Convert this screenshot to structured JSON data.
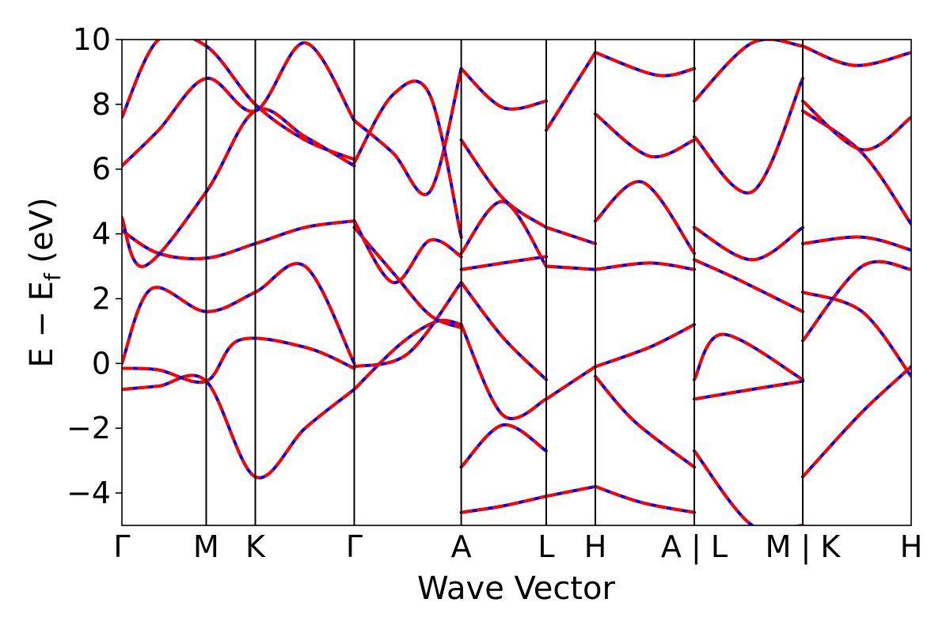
{
  "chart_data": {
    "type": "line",
    "title": "",
    "xlabel": "Wave Vector",
    "ylabel": "E − E",
    "ylabel_sub": "f",
    "ylabel_unit": " (eV)",
    "ylim": [
      -5,
      10
    ],
    "yticks": [
      -4,
      -2,
      0,
      2,
      4,
      6,
      8,
      10
    ],
    "yticklabels": [
      "−4",
      "−2",
      "0",
      "2",
      "4",
      "6",
      "8",
      "10"
    ],
    "xlim": [
      0,
      10.77
    ],
    "kpoints": [
      {
        "x": 0.0,
        "label": "Γ"
      },
      {
        "x": 1.15,
        "label": "M"
      },
      {
        "x": 1.82,
        "label": "K"
      },
      {
        "x": 3.17,
        "label": "Γ"
      },
      {
        "x": 4.63,
        "label": "A"
      },
      {
        "x": 5.79,
        "label": "L"
      },
      {
        "x": 6.46,
        "label": "H"
      },
      {
        "x": 7.81,
        "label": "A | L"
      },
      {
        "x": 9.29,
        "label": "M | K"
      },
      {
        "x": 10.77,
        "label": "H"
      }
    ],
    "colors": {
      "dft": "#0000ff",
      "fit": "#ff0000"
    },
    "series": [
      {
        "x": [
          0,
          0.5,
          1.15,
          1.82,
          2.5,
          3.17
        ],
        "y": [
          -0.8,
          -0.7,
          -0.55,
          -3.5,
          -2.0,
          -0.8
        ]
      },
      {
        "x": [
          0,
          0.5,
          1.15,
          1.6,
          2.5,
          3.17
        ],
        "y": [
          -0.15,
          -0.2,
          -0.55,
          0.72,
          0.5,
          -0.15
        ]
      },
      {
        "x": [
          0,
          0.4,
          1.15,
          1.82,
          2.5,
          3.17
        ],
        "y": [
          0.0,
          2.3,
          1.6,
          2.2,
          3.0,
          0.0
        ]
      },
      {
        "x": [
          0,
          0.5,
          1.15,
          1.82,
          2.5,
          3.17
        ],
        "y": [
          4.1,
          3.4,
          3.25,
          3.7,
          4.2,
          4.4
        ]
      },
      {
        "x": [
          0,
          0.3,
          1.15,
          1.82,
          2.5,
          3.17
        ],
        "y": [
          4.5,
          3.0,
          5.3,
          7.8,
          7.0,
          6.1
        ]
      },
      {
        "x": [
          0,
          0.5,
          1.15,
          1.82,
          2.5,
          3.17
        ],
        "y": [
          6.1,
          7.2,
          8.8,
          7.8,
          9.9,
          7.5
        ]
      },
      {
        "x": [
          0,
          0.5,
          1.15,
          1.82,
          2.5,
          3.17
        ],
        "y": [
          7.6,
          10.0,
          9.8,
          8.0,
          6.9,
          6.3
        ]
      },
      {
        "x": [
          3.17,
          3.8,
          4.3,
          4.63
        ],
        "y": [
          -0.8,
          0.6,
          1.3,
          1.2
        ]
      },
      {
        "x": [
          3.17,
          3.9,
          4.63
        ],
        "y": [
          -0.1,
          0.3,
          2.5
        ]
      },
      {
        "x": [
          3.17,
          3.7,
          4.2,
          4.63
        ],
        "y": [
          4.2,
          2.8,
          1.5,
          1.1
        ]
      },
      {
        "x": [
          3.17,
          3.7,
          4.2,
          4.63
        ],
        "y": [
          4.4,
          2.5,
          3.8,
          3.3
        ]
      },
      {
        "x": [
          3.17,
          3.7,
          4.2,
          4.63
        ],
        "y": [
          6.2,
          8.3,
          8.3,
          3.9
        ]
      },
      {
        "x": [
          3.17,
          3.7,
          4.2,
          4.63
        ],
        "y": [
          7.5,
          6.5,
          5.3,
          9.1
        ]
      },
      {
        "x": [
          4.63,
          5.2,
          5.79
        ],
        "y": [
          -4.6,
          -4.4,
          -4.1
        ]
      },
      {
        "x": [
          4.63,
          5.2,
          5.79
        ],
        "y": [
          -3.2,
          -1.9,
          -2.7
        ]
      },
      {
        "x": [
          4.63,
          5.2,
          5.79
        ],
        "y": [
          1.2,
          -1.6,
          -1.1
        ]
      },
      {
        "x": [
          4.63,
          5.2,
          5.79
        ],
        "y": [
          2.5,
          0.8,
          -0.5
        ]
      },
      {
        "x": [
          4.63,
          5.2,
          5.79
        ],
        "y": [
          2.9,
          3.1,
          3.3
        ]
      },
      {
        "x": [
          4.63,
          5.2,
          5.79
        ],
        "y": [
          3.4,
          5.0,
          3.0
        ]
      },
      {
        "x": [
          4.63,
          5.2,
          5.79
        ],
        "y": [
          6.9,
          5.1,
          4.2
        ]
      },
      {
        "x": [
          4.63,
          5.2,
          5.79
        ],
        "y": [
          9.1,
          7.9,
          8.1
        ]
      },
      {
        "x": [
          5.79,
          6.46
        ],
        "y": [
          -4.1,
          -3.8
        ]
      },
      {
        "x": [
          5.79,
          6.46
        ],
        "y": [
          -1.1,
          -0.1
        ]
      },
      {
        "x": [
          5.79,
          6.46
        ],
        "y": [
          3.0,
          2.9
        ]
      },
      {
        "x": [
          5.79,
          6.46
        ],
        "y": [
          4.2,
          3.7
        ]
      },
      {
        "x": [
          5.79,
          6.46
        ],
        "y": [
          7.2,
          9.6
        ]
      },
      {
        "x": [
          6.46,
          7.1,
          7.81
        ],
        "y": [
          -3.8,
          -4.3,
          -4.6
        ]
      },
      {
        "x": [
          6.46,
          7.0,
          7.81
        ],
        "y": [
          -0.4,
          -1.8,
          -3.2
        ]
      },
      {
        "x": [
          6.46,
          7.2,
          7.81
        ],
        "y": [
          -0.1,
          0.5,
          1.2
        ]
      },
      {
        "x": [
          6.46,
          7.2,
          7.81
        ],
        "y": [
          2.9,
          3.1,
          2.9
        ]
      },
      {
        "x": [
          6.46,
          7.1,
          7.81
        ],
        "y": [
          4.4,
          5.6,
          3.4
        ]
      },
      {
        "x": [
          6.46,
          7.2,
          7.81
        ],
        "y": [
          7.7,
          6.4,
          6.9
        ]
      },
      {
        "x": [
          6.46,
          7.3,
          7.81
        ],
        "y": [
          9.6,
          8.9,
          9.1
        ]
      },
      {
        "x": [
          7.81,
          8.6,
          9.29
        ],
        "y": [
          -2.7,
          -5.0,
          -5.0
        ]
      },
      {
        "x": [
          7.81,
          8.6,
          9.29
        ],
        "y": [
          -1.1,
          -0.8,
          -0.55
        ]
      },
      {
        "x": [
          7.81,
          8.2,
          9.29
        ],
        "y": [
          -0.5,
          0.9,
          -0.5
        ]
      },
      {
        "x": [
          7.81,
          8.4,
          9.29
        ],
        "y": [
          3.2,
          2.6,
          1.6
        ]
      },
      {
        "x": [
          7.81,
          8.6,
          9.29
        ],
        "y": [
          4.2,
          3.2,
          4.2
        ]
      },
      {
        "x": [
          7.81,
          8.6,
          9.29
        ],
        "y": [
          7.0,
          5.3,
          8.8
        ]
      },
      {
        "x": [
          7.81,
          8.6,
          9.29
        ],
        "y": [
          8.1,
          9.9,
          9.8
        ]
      },
      {
        "x": [
          9.29,
          10.1,
          10.77
        ],
        "y": [
          -3.5,
          -1.5,
          -0.1
        ]
      },
      {
        "x": [
          9.29,
          10.1,
          10.77
        ],
        "y": [
          0.7,
          3.0,
          2.9
        ]
      },
      {
        "x": [
          9.29,
          10.1,
          10.77
        ],
        "y": [
          2.2,
          1.6,
          -0.4
        ]
      },
      {
        "x": [
          9.29,
          10.1,
          10.77
        ],
        "y": [
          3.7,
          3.9,
          3.5
        ]
      },
      {
        "x": [
          9.29,
          10.1,
          10.77
        ],
        "y": [
          7.8,
          6.5,
          4.3
        ]
      },
      {
        "x": [
          9.29,
          10.1,
          10.77
        ],
        "y": [
          8.1,
          6.6,
          7.6
        ]
      },
      {
        "x": [
          9.29,
          10.0,
          10.77
        ],
        "y": [
          9.8,
          9.2,
          9.6
        ]
      }
    ]
  }
}
